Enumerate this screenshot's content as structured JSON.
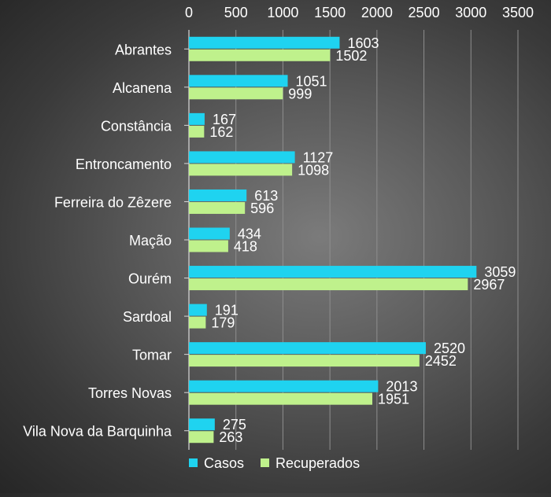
{
  "chart_data": {
    "type": "bar",
    "orientation": "horizontal",
    "categories": [
      "Abrantes",
      "Alcanena",
      "Constância",
      "Entroncamento",
      "Ferreira do Zêzere",
      "Mação",
      "Ourém",
      "Sardoal",
      "Tomar",
      "Torres Novas",
      "Vila Nova da Barquinha"
    ],
    "series": [
      {
        "name": "Casos",
        "color": "#1fd3f0",
        "values": [
          1603,
          1051,
          167,
          1127,
          613,
          434,
          3059,
          191,
          2520,
          2013,
          275
        ]
      },
      {
        "name": "Recuperados",
        "color": "#bff18c",
        "values": [
          1502,
          999,
          162,
          1098,
          596,
          418,
          2967,
          179,
          2452,
          1951,
          263
        ]
      }
    ],
    "xlim": [
      0,
      3500
    ],
    "x_ticks": [
      "0",
      "500",
      "1000",
      "1500",
      "2000",
      "2500",
      "3000",
      "3500"
    ],
    "x_axis_position": "top",
    "grid": true,
    "legend_position": "bottom",
    "data_labels": true,
    "title": "",
    "xlabel": "",
    "ylabel": ""
  }
}
